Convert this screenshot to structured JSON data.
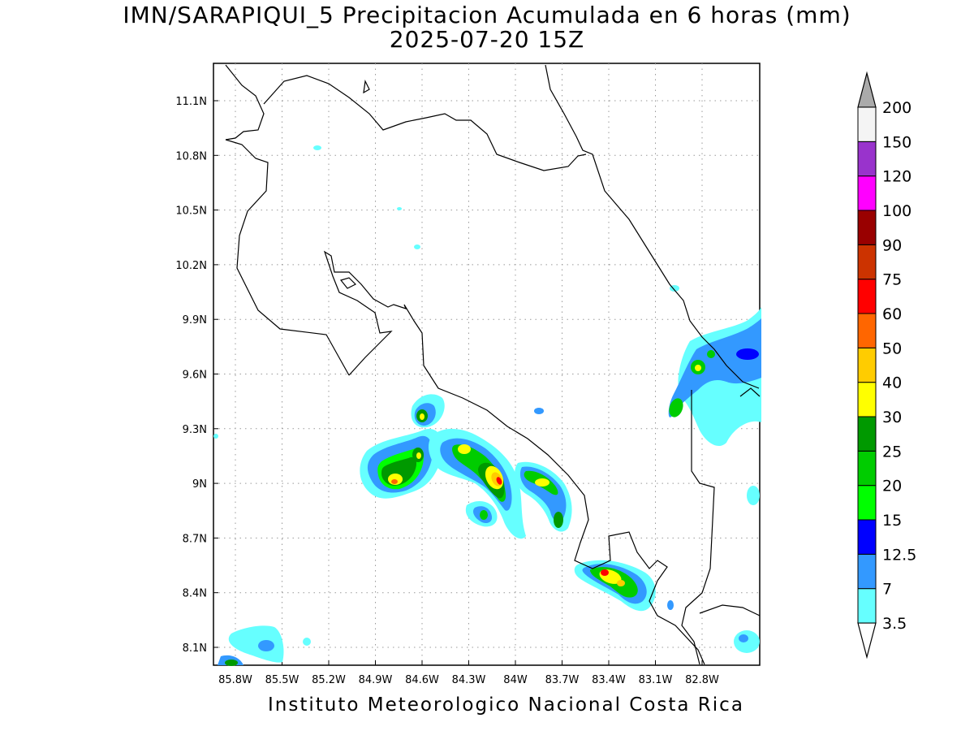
{
  "title": {
    "line1": "IMN/SARAPIQUI_5 Precipitacion Acumulada en 6 horas (mm)",
    "line2": "2025-07-20 15Z"
  },
  "credit": "Instituto Meteorologico Nacional Costa Rica",
  "map": {
    "lon_range": [
      -86.0,
      -82.6
    ],
    "lat_range": [
      8.0,
      11.3
    ],
    "lon_ticks": [
      "85.8W",
      "85.5W",
      "85.2W",
      "84.9W",
      "84.6W",
      "84.3W",
      "84W",
      "83.7W",
      "83.4W",
      "83.1W",
      "82.8W"
    ],
    "lat_ticks": [
      "8.1N",
      "8.4N",
      "8.7N",
      "9N",
      "9.3N",
      "9.6N",
      "9.9N",
      "10.2N",
      "10.5N",
      "10.8N",
      "11.1N"
    ],
    "grid": "dotted"
  },
  "colorbar": {
    "levels": [
      "3.5",
      "7",
      "12.5",
      "15",
      "20",
      "25",
      "30",
      "40",
      "50",
      "60",
      "75",
      "90",
      "100",
      "120",
      "150",
      "200"
    ],
    "colors": [
      "#66ffff",
      "#3399ff",
      "#0000ff",
      "#00ff00",
      "#00cc00",
      "#009900",
      "#ffff00",
      "#ffcc00",
      "#ff6600",
      "#ff0000",
      "#cc3300",
      "#990000",
      "#ff00ff",
      "#9933cc",
      "#f4f4f4",
      "#aaaaaa"
    ]
  }
}
